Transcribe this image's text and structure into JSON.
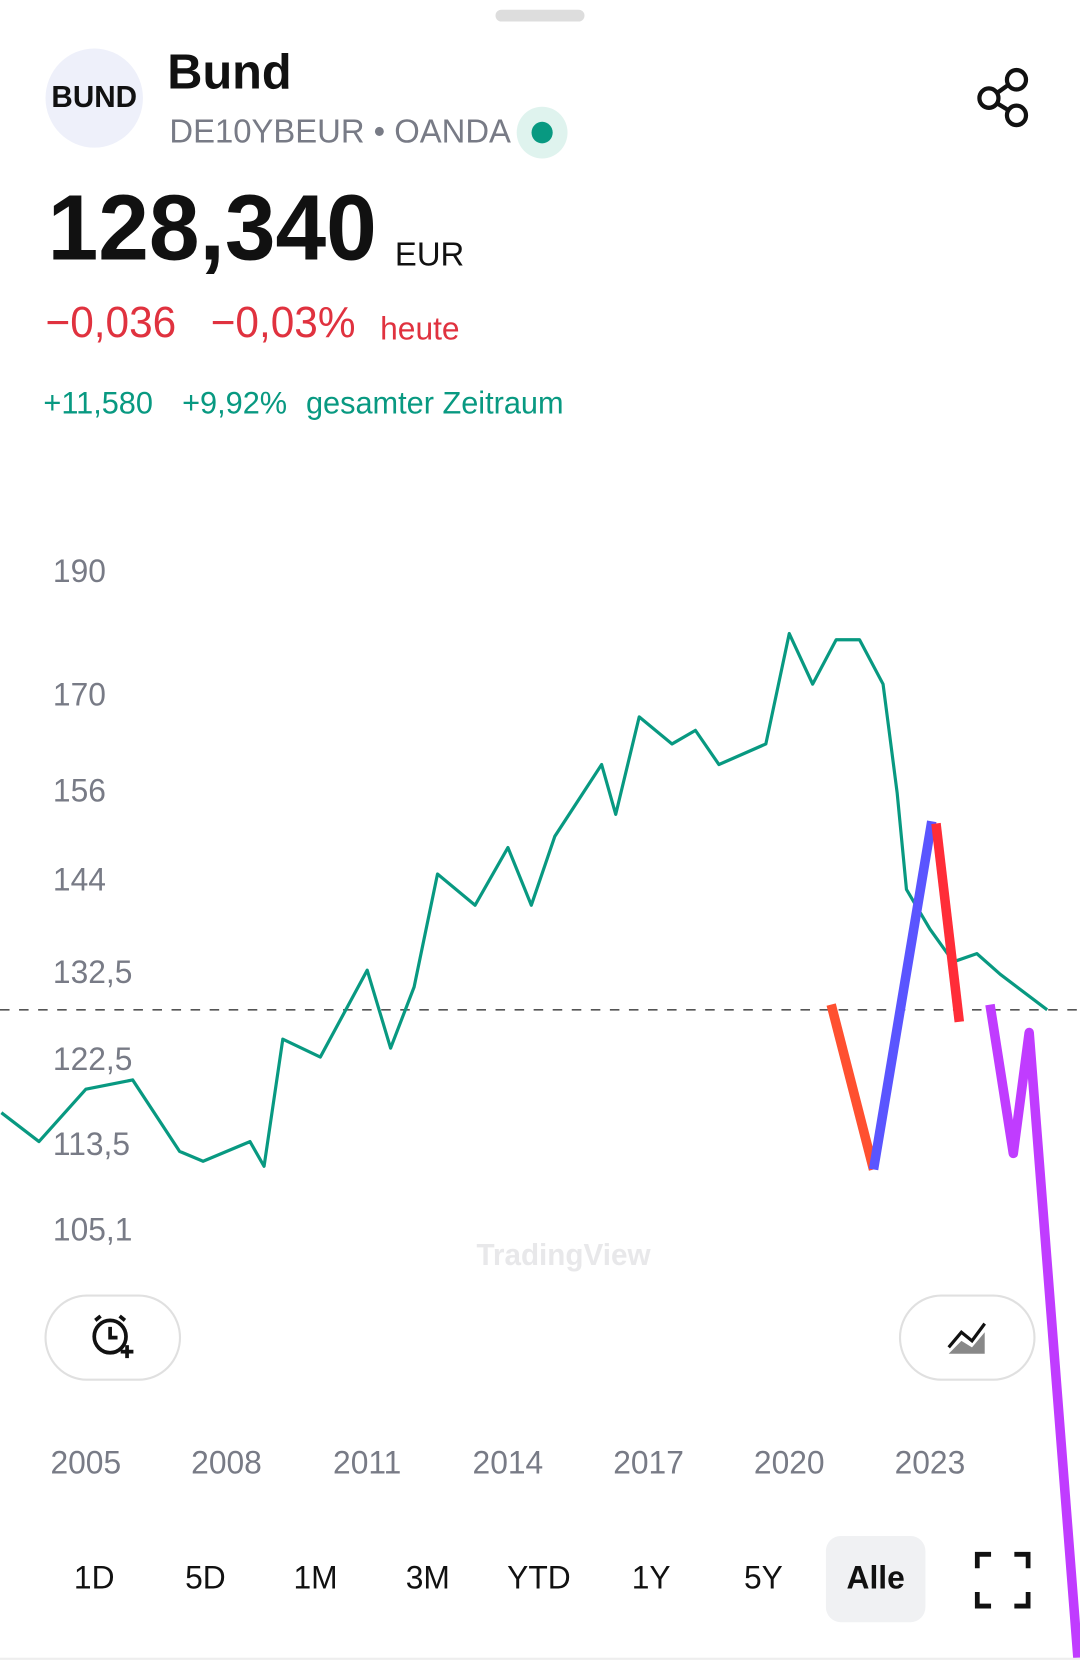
{
  "header": {
    "logo": "BUND",
    "title": "Bund",
    "symbol_line": "DE10YBEUR • OANDA"
  },
  "quote": {
    "price": "128,340",
    "currency": "EUR",
    "change": "−0,036",
    "change_pct": "−0,03%",
    "change_period": "heute",
    "total_change": "+11,580",
    "total_pct": "+9,92%",
    "total_period": "gesamter Zeitraum"
  },
  "watermark": "TradingView",
  "ranges": [
    "1D",
    "5D",
    "1M",
    "3M",
    "YTD",
    "1Y",
    "5Y",
    "Alle"
  ],
  "chart_data": {
    "type": "line",
    "log_scale": true,
    "color": "#089981",
    "price_line": 128.34,
    "x": [
      2003.2,
      2004,
      2005,
      2006,
      2007,
      2007.5,
      2008.5,
      2008.8,
      2009.2,
      2010,
      2011,
      2011.5,
      2012,
      2012.5,
      2013.3,
      2014,
      2014.5,
      2015,
      2016,
      2016.3,
      2016.8,
      2017.5,
      2018,
      2018.5,
      2019.5,
      2020,
      2020.5,
      2021,
      2021.5,
      2022,
      2022.3,
      2022.5,
      2023,
      2023.5,
      2024,
      2024.5,
      2025.5
    ],
    "values": [
      117,
      114,
      119.5,
      120.5,
      113,
      112,
      114,
      111.5,
      125,
      123,
      133,
      124,
      131,
      145,
      141,
      148.5,
      141,
      150,
      160,
      153,
      167,
      163,
      165,
      160,
      163,
      180,
      172,
      179,
      179,
      172,
      156,
      143,
      138,
      134,
      135,
      132.5,
      128.34
    ],
    "xlim": [
      2003.17,
      2026.2
    ],
    "xticks": [
      2005,
      2008,
      2011,
      2014,
      2017,
      2020,
      2023
    ],
    "ylim": [
      105.1,
      190
    ],
    "yticks": [
      {
        "value": 105.1,
        "label": "105,1"
      },
      {
        "value": 113.5,
        "label": "113,5"
      },
      {
        "value": 122.5,
        "label": "122,5"
      },
      {
        "value": 132.5,
        "label": "132,5"
      },
      144,
      156,
      170,
      190
    ]
  }
}
